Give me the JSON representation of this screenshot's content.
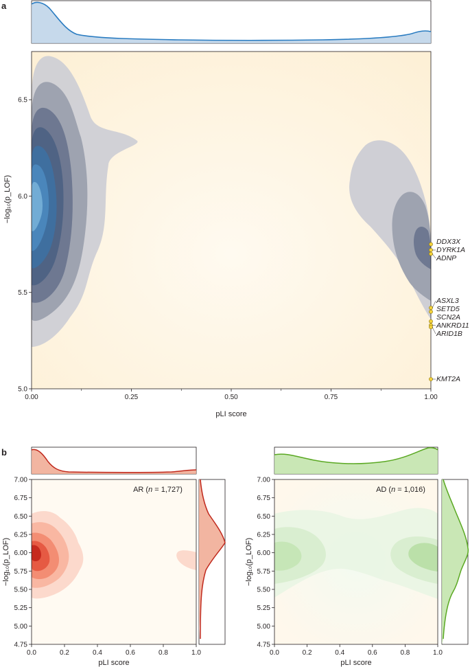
{
  "chart_data": [
    {
      "panel": "a",
      "type": "density",
      "xlabel": "pLI score",
      "ylabel": "−log₁₀(p_LOF)",
      "xlim": [
        0,
        1
      ],
      "ylim": [
        5.0,
        6.75
      ],
      "xticks": [
        "0.00",
        "0.25",
        "0.50",
        "0.75",
        "1.00"
      ],
      "yticks": [
        "5.0",
        "5.5",
        "6.0",
        "6.5"
      ],
      "series_colors": {
        "density": "#2e7ab8",
        "contour": "#303c58",
        "highlight": "#f5d33b"
      },
      "highlighted_genes": [
        {
          "label": "DDX3X",
          "x": 1.0,
          "y": 5.75
        },
        {
          "label": "DYRK1A",
          "x": 1.0,
          "y": 5.72
        },
        {
          "label": "ADNP",
          "x": 1.0,
          "y": 5.7
        },
        {
          "label": "ASXL3",
          "x": 1.0,
          "y": 5.42
        },
        {
          "label": "SETD5",
          "x": 1.0,
          "y": 5.4
        },
        {
          "label": "SCN2A",
          "x": 1.0,
          "y": 5.35
        },
        {
          "label": "ANKRD11",
          "x": 1.0,
          "y": 5.33
        },
        {
          "label": "ARID1B",
          "x": 1.0,
          "y": 5.32
        },
        {
          "label": "KMT2A",
          "x": 1.0,
          "y": 5.05
        }
      ]
    },
    {
      "panel": "b",
      "type": "density",
      "annotation": "AR (",
      "annotation_n": "n",
      "annotation_count": " = 1,727)",
      "xlabel": "pLI score",
      "ylabel": "−log₁₀(p_LOF)",
      "xlim": [
        0,
        1
      ],
      "ylim": [
        4.75,
        7.0
      ],
      "xticks": [
        "0.0",
        "0.2",
        "0.4",
        "0.6",
        "0.8",
        "1.0"
      ],
      "yticks": [
        "4.75",
        "5.00",
        "5.25",
        "5.50",
        "5.75",
        "6.00",
        "6.25",
        "6.50",
        "6.75",
        "7.00"
      ],
      "color": "#d9301f"
    },
    {
      "panel": "b-right",
      "type": "density",
      "annotation": "AD (",
      "annotation_n": "n",
      "annotation_count": " = 1,016)",
      "xlabel": "pLI score",
      "ylabel": "−log₁₀(p_LOF)",
      "xlim": [
        0,
        1
      ],
      "ylim": [
        4.75,
        7.0
      ],
      "xticks": [
        "0.0",
        "0.2",
        "0.4",
        "0.6",
        "0.8",
        "1.0"
      ],
      "yticks": [
        "4.75",
        "5.00",
        "5.25",
        "5.50",
        "5.75",
        "6.00",
        "6.25",
        "6.50",
        "6.75",
        "7.00"
      ],
      "color": "#6ab02e"
    }
  ],
  "panel_labels": {
    "a": "a",
    "b": "b"
  }
}
